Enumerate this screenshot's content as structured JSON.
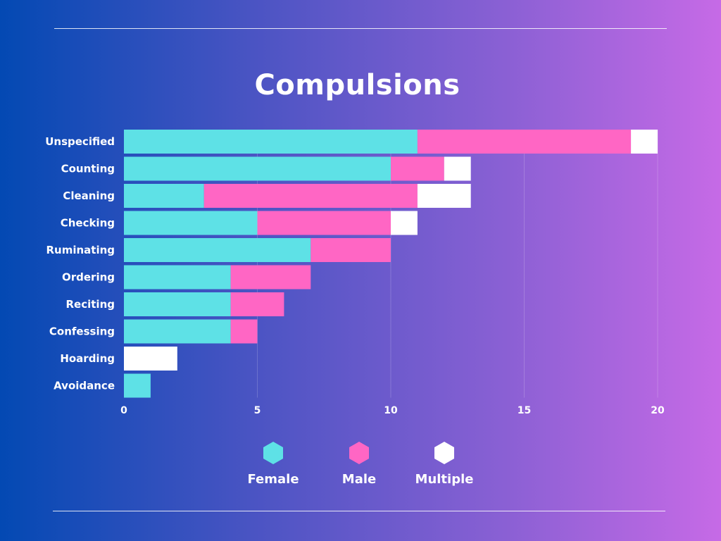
{
  "page": {
    "title": "Compulsions"
  },
  "colors": {
    "female": "#5ee1e6",
    "male": "#ff66c4",
    "multiple": "#ffffff"
  },
  "legend": [
    {
      "key": "female",
      "label": "Female",
      "icon": "hexagon-icon",
      "color": "#5ee1e6"
    },
    {
      "key": "male",
      "label": "Male",
      "icon": "hexagon-icon",
      "color": "#ff66c4"
    },
    {
      "key": "multiple",
      "label": "Multiple",
      "icon": "hexagon-icon",
      "color": "#ffffff"
    }
  ],
  "chart_data": {
    "type": "bar",
    "orientation": "horizontal",
    "stacked": true,
    "title": "Compulsions",
    "categories": [
      "Unspecified",
      "Counting",
      "Cleaning",
      "Checking",
      "Ruminating",
      "Ordering",
      "Reciting",
      "Confessing",
      "Hoarding",
      "Avoidance"
    ],
    "series": [
      {
        "name": "Female",
        "values": [
          11,
          10,
          3,
          5,
          7,
          4,
          4,
          4,
          0,
          1
        ]
      },
      {
        "name": "Male",
        "values": [
          8,
          2,
          8,
          5,
          3,
          3,
          2,
          1,
          0,
          0
        ]
      },
      {
        "name": "Multiple",
        "values": [
          1,
          1,
          2,
          1,
          0,
          0,
          0,
          0,
          2,
          0
        ]
      }
    ],
    "xlim": [
      0,
      20
    ],
    "xticks": [
      0,
      5,
      10,
      15,
      20
    ],
    "xlabel": "",
    "ylabel": "",
    "grid": true,
    "legend_position": "bottom"
  }
}
